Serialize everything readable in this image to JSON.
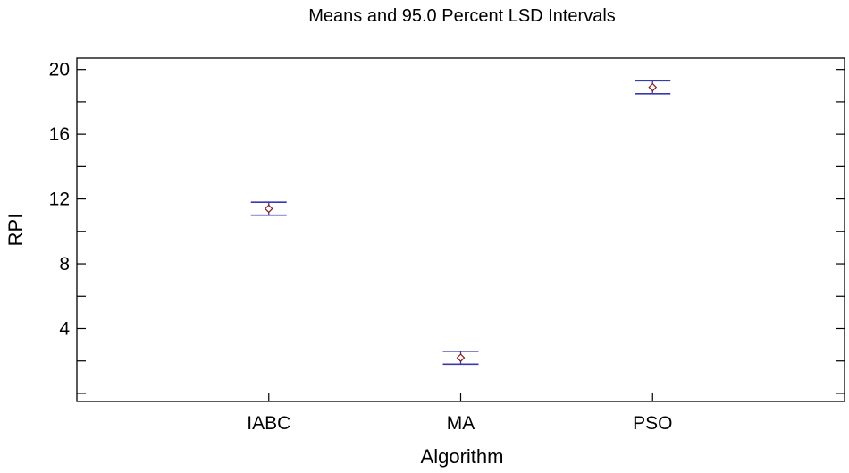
{
  "chart_data": {
    "type": "interval",
    "title": "Means and 95.0 Percent LSD Intervals",
    "xlabel": "Algorithm",
    "ylabel": "RPI",
    "categories": [
      "IABC",
      "MA",
      "PSO"
    ],
    "means": [
      11.4,
      2.2,
      18.9
    ],
    "lower": [
      11.0,
      1.8,
      18.5
    ],
    "upper": [
      11.8,
      2.6,
      19.3
    ],
    "ylim": [
      -0.5,
      20.7
    ],
    "yticks": [
      0,
      2,
      4,
      6,
      8,
      10,
      12,
      14,
      16,
      18,
      20
    ],
    "ytick_labels": [
      "4",
      "8",
      "12",
      "16",
      "20"
    ],
    "ytick_label_values": [
      4,
      8,
      12,
      16,
      20
    ],
    "interval_color": "#3a3ab0",
    "mean_marker_color": "#8b1a1a"
  }
}
